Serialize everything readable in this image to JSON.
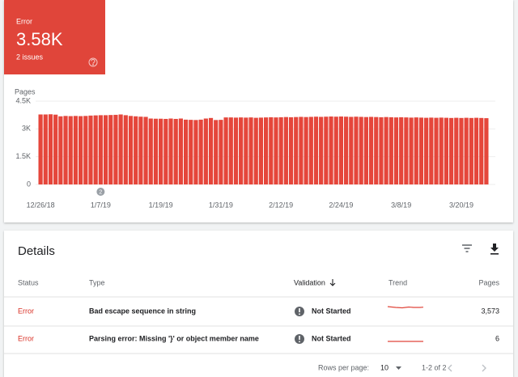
{
  "summary": {
    "status": "Error",
    "count": "3.58K",
    "issues": "2 issues"
  },
  "chart_data": {
    "type": "bar",
    "y_label": "Pages",
    "categories": [
      "12/26/18",
      null,
      null,
      null,
      null,
      null,
      null,
      null,
      null,
      null,
      null,
      null,
      "1/7/19",
      null,
      null,
      null,
      null,
      null,
      null,
      null,
      null,
      null,
      null,
      null,
      "1/19/19",
      null,
      null,
      null,
      null,
      null,
      null,
      null,
      null,
      null,
      null,
      null,
      "1/31/19",
      null,
      null,
      null,
      null,
      null,
      null,
      null,
      null,
      null,
      null,
      null,
      "2/12/19",
      null,
      null,
      null,
      null,
      null,
      null,
      null,
      null,
      null,
      null,
      null,
      "2/24/19",
      null,
      null,
      null,
      null,
      null,
      null,
      null,
      null,
      null,
      null,
      null,
      "3/8/19",
      null,
      null,
      null,
      null,
      null,
      null,
      null,
      null,
      null,
      null,
      null,
      "3/20/19",
      null,
      null,
      null,
      null,
      null
    ],
    "values": [
      3780,
      3780,
      3790,
      3770,
      3680,
      3700,
      3690,
      3700,
      3690,
      3700,
      3720,
      3730,
      3740,
      3740,
      3750,
      3760,
      3780,
      3740,
      3700,
      3680,
      3660,
      3650,
      3560,
      3550,
      3550,
      3540,
      3560,
      3540,
      3560,
      3500,
      3490,
      3480,
      3500,
      3560,
      3590,
      3480,
      3490,
      3620,
      3620,
      3610,
      3620,
      3610,
      3620,
      3600,
      3610,
      3620,
      3630,
      3620,
      3630,
      3640,
      3630,
      3640,
      3650,
      3640,
      3650,
      3660,
      3650,
      3660,
      3670,
      3660,
      3670,
      3660,
      3650,
      3660,
      3650,
      3640,
      3650,
      3640,
      3630,
      3640,
      3630,
      3620,
      3630,
      3620,
      3610,
      3620,
      3610,
      3600,
      3610,
      3600,
      3610,
      3600,
      3590,
      3600,
      3590,
      3600,
      3590,
      3600,
      3590,
      3579
    ],
    "color": "#e5463b",
    "ylim": [
      0,
      4500
    ],
    "yticks": [
      0,
      {
        "value": 1500,
        "label": "1.5K"
      },
      {
        "value": 3000,
        "label": "3K"
      },
      {
        "value": 4500,
        "label": "4.5K"
      }
    ],
    "grid": true,
    "annotations": [
      {
        "category": "1/7/19",
        "label": "2"
      }
    ]
  },
  "details": {
    "title": "Details",
    "columns": [
      "Status",
      "Type",
      "Validation",
      "Trend",
      "Pages"
    ],
    "rows": [
      {
        "status": "Error",
        "type": "Bad escape sequence in string",
        "validation": "Not Started",
        "pages": "3,573"
      },
      {
        "status": "Error",
        "type": "Parsing error: Missing '}' or object member name",
        "validation": "Not Started",
        "pages": "6"
      }
    ],
    "footer": {
      "rows_per_page_label": "Rows per page:",
      "rows_per_page": "10",
      "range": "1-2 of 2"
    }
  }
}
